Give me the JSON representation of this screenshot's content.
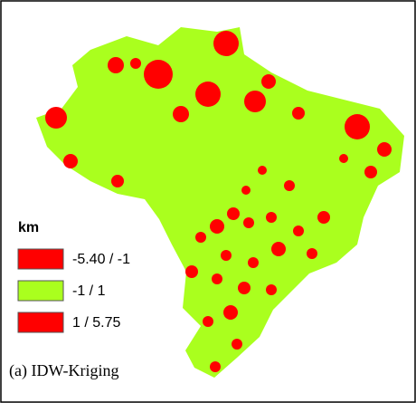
{
  "legend": {
    "title": "km",
    "items": [
      {
        "label": "-5.40 / -1",
        "color": "#ff0000"
      },
      {
        "label": "-1 / 1",
        "color": "#aaff1e"
      },
      {
        "label": "1 / 5.75",
        "color": "#ff0000"
      }
    ]
  },
  "caption": "(a)  IDW-Kriging"
}
